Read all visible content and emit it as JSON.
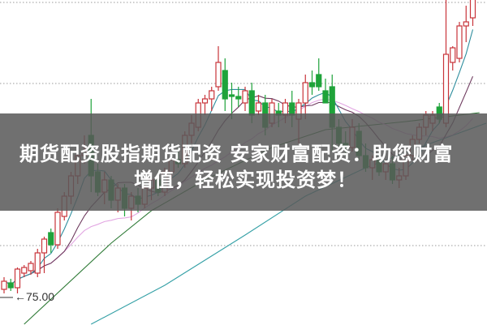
{
  "banner": {
    "line1": "期货配资股指期货配资 安家财富配资：助您财富",
    "line2": "增值，轻松实现投资梦！"
  },
  "chart_data": {
    "type": "candlestick",
    "price_marker": {
      "label": "←75.00",
      "value": 75.0
    },
    "grid": "horizontal dotted",
    "colors": {
      "up": "#c8343a",
      "down": "#1fa33a",
      "ma5": "#2f8e9e",
      "ma10": "#6e3a5e",
      "ma20": "#e2a6e2",
      "ma_long1": "#2e7a36",
      "ma_long2": "#34a0a6"
    },
    "candles_ohlc": [
      [
        76.0,
        77.5,
        75.5,
        77.0
      ],
      [
        76.8,
        77.3,
        75.8,
        76.2
      ],
      [
        76.2,
        78.7,
        75.5,
        78.5
      ],
      [
        78.0,
        79.0,
        77.5,
        78.7
      ],
      [
        78.3,
        79.5,
        77.8,
        79.2
      ],
      [
        78.0,
        81.0,
        77.5,
        80.5
      ],
      [
        80.5,
        82.5,
        78.0,
        82.2
      ],
      [
        83.0,
        83.5,
        80.5,
        81.5
      ],
      [
        81.5,
        86.0,
        81.0,
        85.5
      ],
      [
        85.0,
        88.0,
        84.5,
        87.5
      ],
      [
        87.5,
        90.5,
        86.5,
        90.0
      ],
      [
        90.0,
        93.0,
        89.0,
        92.5
      ],
      [
        92.5,
        95.0,
        91.5,
        93.0
      ],
      [
        95.0,
        99.5,
        88.0,
        90.0
      ],
      [
        90.5,
        91.5,
        87.5,
        88.0
      ],
      [
        88.0,
        90.5,
        86.5,
        89.5
      ],
      [
        89.5,
        90.0,
        86.0,
        87.0
      ],
      [
        87.0,
        89.0,
        85.5,
        88.5
      ],
      [
        88.5,
        89.0,
        85.0,
        86.0
      ],
      [
        86.0,
        88.0,
        84.5,
        87.5
      ],
      [
        87.5,
        88.5,
        85.5,
        86.5
      ],
      [
        86.5,
        89.0,
        86.0,
        88.5
      ],
      [
        88.5,
        90.0,
        87.0,
        89.5
      ],
      [
        89.5,
        90.5,
        87.5,
        88.0
      ],
      [
        88.0,
        91.0,
        87.5,
        90.5
      ],
      [
        90.5,
        92.5,
        89.5,
        92.0
      ],
      [
        92.0,
        93.5,
        91.0,
        91.5
      ],
      [
        91.5,
        95.5,
        91.0,
        95.0
      ],
      [
        95.0,
        97.5,
        94.0,
        96.5
      ],
      [
        96.0,
        99.5,
        95.5,
        99.0
      ],
      [
        99.0,
        100.0,
        97.5,
        99.5
      ],
      [
        99.5,
        101.0,
        98.0,
        100.5
      ],
      [
        101.0,
        106.0,
        100.5,
        104.0
      ],
      [
        103.0,
        104.5,
        98.0,
        99.5
      ],
      [
        100.0,
        101.5,
        97.0,
        99.8
      ],
      [
        99.8,
        101.0,
        98.5,
        99.5
      ],
      [
        99.0,
        101.0,
        98.0,
        100.5
      ],
      [
        100.5,
        101.5,
        96.5,
        97.5
      ],
      [
        98.0,
        100.0,
        97.5,
        99.0
      ],
      [
        99.0,
        100.0,
        95.0,
        96.0
      ],
      [
        96.5,
        99.5,
        96.0,
        99.0
      ],
      [
        98.0,
        99.0,
        96.0,
        97.5
      ],
      [
        97.5,
        99.5,
        96.5,
        99.0
      ],
      [
        99.0,
        100.5,
        96.0,
        97.5
      ],
      [
        97.0,
        99.5,
        94.0,
        99.0
      ],
      [
        99.0,
        102.5,
        97.0,
        101.5
      ],
      [
        101.5,
        103.0,
        100.0,
        101.0
      ],
      [
        102.5,
        104.5,
        100.5,
        101.0
      ],
      [
        100.5,
        102.0,
        99.0,
        99.0
      ],
      [
        101.0,
        102.5,
        93.0,
        96.0
      ],
      [
        96.0,
        97.0,
        93.5,
        94.0
      ],
      [
        94.0,
        95.5,
        92.5,
        93.5
      ],
      [
        93.5,
        97.0,
        93.0,
        96.0
      ],
      [
        95.5,
        96.5,
        92.0,
        92.5
      ],
      [
        92.5,
        94.0,
        90.5,
        91.0
      ],
      [
        91.0,
        92.5,
        89.5,
        92.0
      ],
      [
        92.0,
        93.0,
        90.0,
        90.5
      ],
      [
        90.5,
        92.0,
        89.5,
        91.5
      ],
      [
        91.5,
        92.5,
        89.0,
        89.5
      ],
      [
        89.5,
        91.0,
        88.5,
        90.0
      ],
      [
        90.0,
        93.0,
        89.5,
        92.5
      ],
      [
        92.5,
        95.0,
        92.0,
        94.5
      ],
      [
        94.5,
        96.5,
        94.0,
        96.0
      ],
      [
        96.0,
        98.0,
        95.0,
        97.5
      ],
      [
        96.5,
        98.0,
        95.5,
        97.5
      ],
      [
        98.5,
        99.0,
        96.5,
        97.0
      ],
      [
        96.5,
        112.0,
        96.0,
        105.0
      ],
      [
        104.0,
        106.0,
        103.0,
        105.8
      ],
      [
        104.5,
        109.0,
        104.0,
        108.5
      ],
      [
        108.5,
        111.0,
        106.5,
        109.0
      ],
      [
        109.5,
        112.5,
        108.5,
        112.0
      ]
    ],
    "long_ma_1": [
      [
        3,
        71.7
      ],
      [
        16,
        81.7
      ],
      [
        22,
        85.7
      ],
      [
        30,
        89.5
      ],
      [
        40,
        93.5
      ],
      [
        48,
        95.7
      ],
      [
        60,
        96.7
      ],
      [
        71,
        97.8
      ]
    ],
    "long_ma_2": [
      [
        13,
        71.7
      ],
      [
        24,
        76.5
      ],
      [
        36,
        82.7
      ],
      [
        45,
        87.5
      ],
      [
        54,
        91.0
      ],
      [
        62,
        93.5
      ],
      [
        72,
        96.5
      ]
    ],
    "gridline_prices": [
      111.4,
      101.4,
      81.4
    ],
    "ylim": [
      71.5,
      111.7
    ]
  }
}
